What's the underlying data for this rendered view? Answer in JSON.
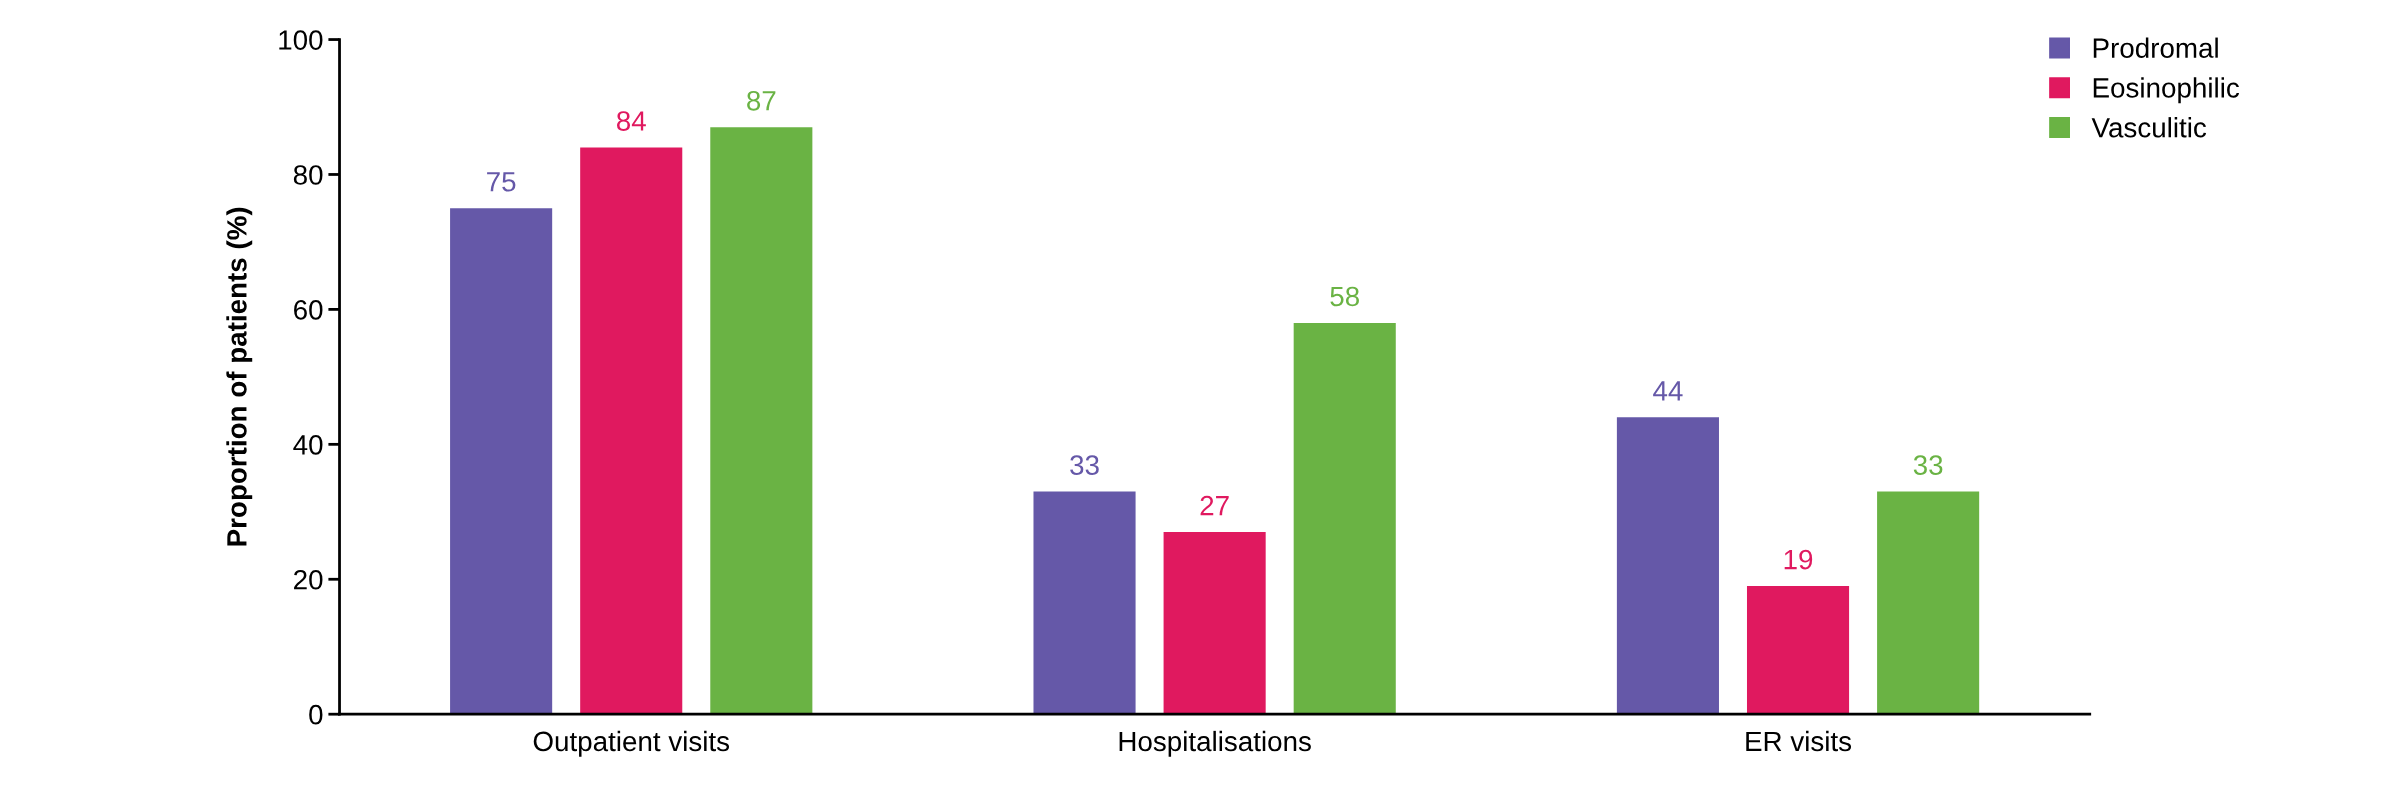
{
  "chart_data": {
    "type": "bar",
    "ylabel": "Proportion of patients (%)",
    "categories": [
      "Outpatient visits",
      "Hospitalisations",
      "ER visits"
    ],
    "series": [
      {
        "name": "Prodromal",
        "color": "#6558a8",
        "values": [
          75,
          33,
          44
        ]
      },
      {
        "name": "Eosinophilic",
        "color": "#e0195f",
        "values": [
          84,
          27,
          19
        ]
      },
      {
        "name": "Vasculitic",
        "color": "#6ab344",
        "values": [
          87,
          58,
          33
        ]
      }
    ],
    "ylim": [
      0,
      100
    ],
    "yticks": [
      0,
      20,
      40,
      60,
      80,
      100
    ],
    "grid": false,
    "legend": "top right",
    "data_labels": true
  }
}
